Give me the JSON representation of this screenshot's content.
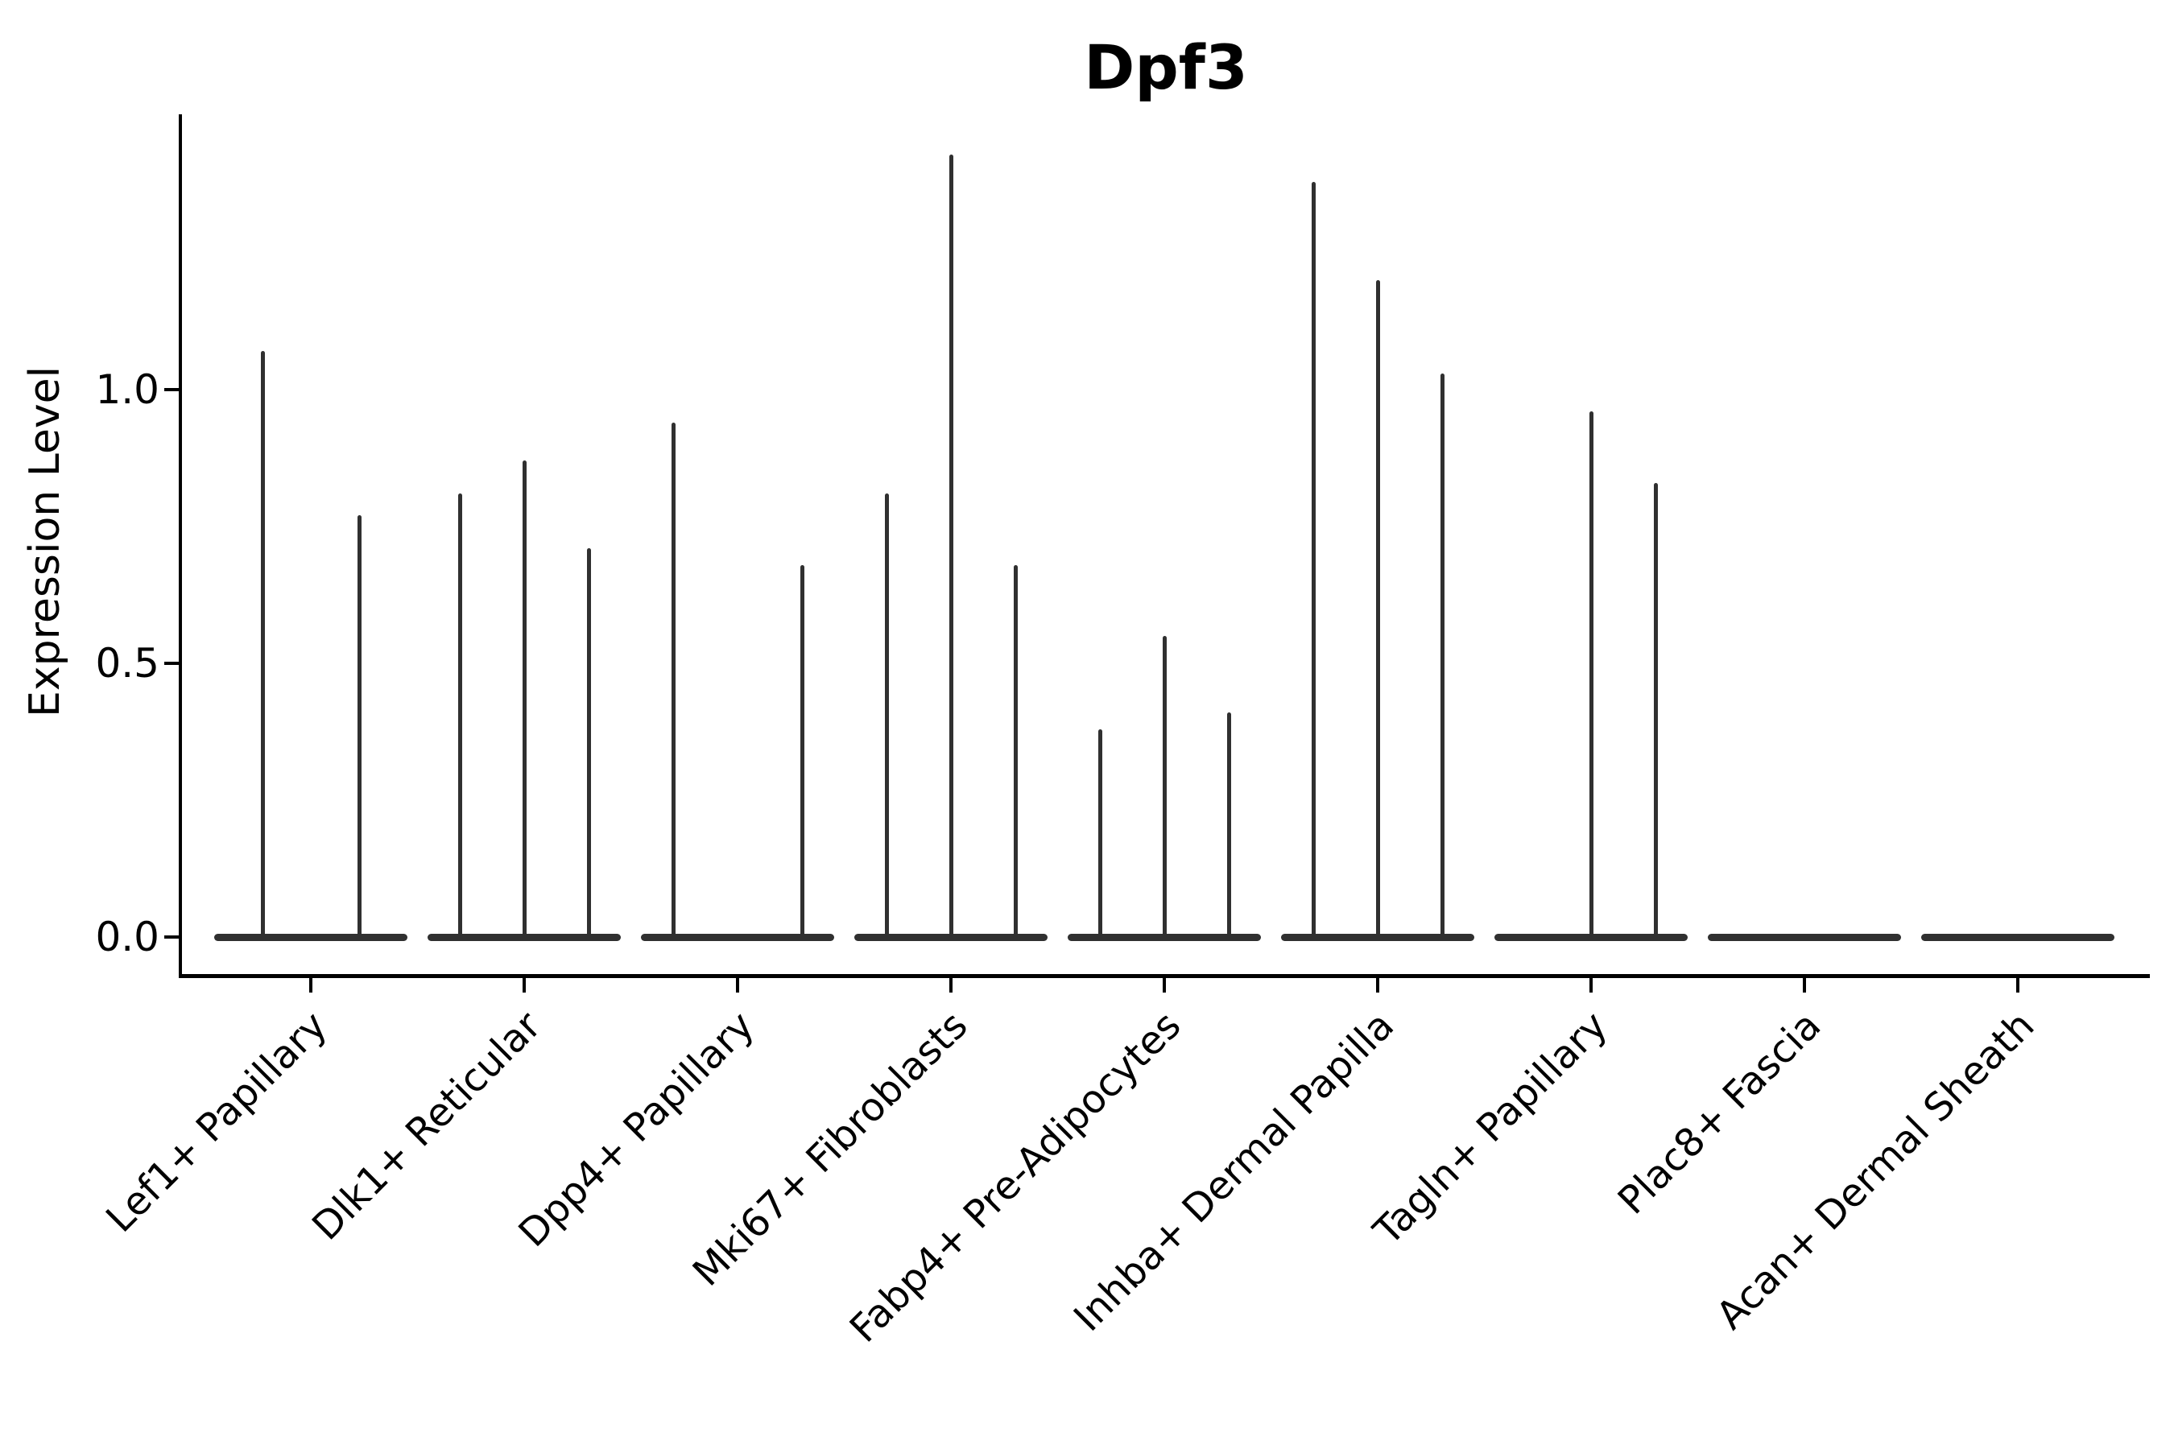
{
  "title": "Dpf3",
  "y_axis": {
    "label": "Expression Level",
    "tick_labels": [
      "0.0",
      "0.5",
      "1.0"
    ]
  },
  "chart_data": {
    "type": "violin",
    "title": "Dpf3",
    "xlabel": "",
    "ylabel": "Expression Level",
    "ylim": [
      0,
      1.5
    ],
    "yticks": [
      0.0,
      0.5,
      1.0
    ],
    "grid": false,
    "legend": "none",
    "description": "Single-gene expression violin plot; each category shows 1-3 very thin violins that are wide only at 0 expression (flat base bar) with a narrow spike up to the maximum expression value. A maximum of 0 means a flat violin with no spike.",
    "categories": [
      "Lef1+ Papillary",
      "Dlk1+ Reticular",
      "Dpp4+ Papillary",
      "Mki67+ Fibroblasts",
      "Fabp4+ Pre-Adipocytes",
      "Inhba+ Dermal Papilla",
      "Tagln+ Papillary",
      "Plac8+ Fascia",
      "Acan+ Dermal Sheath"
    ],
    "violins": [
      {
        "category": "Lef1+ Papillary",
        "spike_maxima": [
          1.07,
          0.77
        ]
      },
      {
        "category": "Dlk1+ Reticular",
        "spike_maxima": [
          0.81,
          0.87,
          0.71
        ]
      },
      {
        "category": "Dpp4+ Papillary",
        "spike_maxima": [
          0.94,
          0,
          0.68
        ]
      },
      {
        "category": "Mki67+ Fibroblasts",
        "spike_maxima": [
          0.81,
          1.43,
          0.68
        ]
      },
      {
        "category": "Fabp4+ Pre-Adipocytes",
        "spike_maxima": [
          0.38,
          0.55,
          0.41
        ]
      },
      {
        "category": "Inhba+ Dermal Papilla",
        "spike_maxima": [
          1.38,
          1.2,
          1.03
        ]
      },
      {
        "category": "Tagln+ Papillary",
        "spike_maxima": [
          0,
          0.96,
          0.83
        ]
      },
      {
        "category": "Plac8+ Fascia",
        "spike_maxima": [
          0
        ]
      },
      {
        "category": "Acan+ Dermal Sheath",
        "spike_maxima": [
          0
        ]
      }
    ]
  }
}
